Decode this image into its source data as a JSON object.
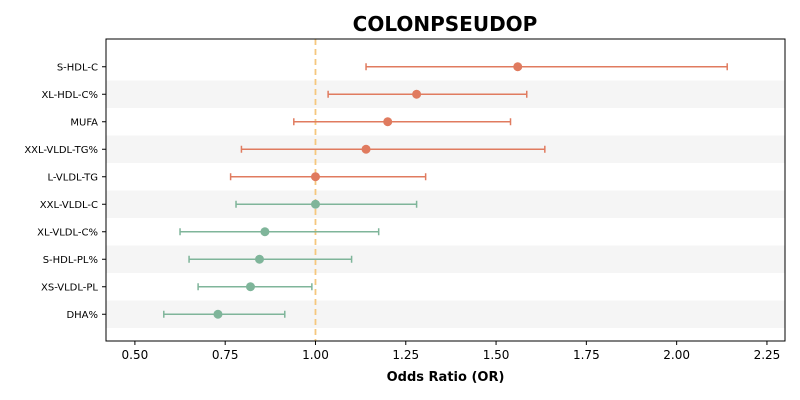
{
  "chart_data": {
    "type": "forest",
    "title": "COLONPSEUDOP",
    "xlabel": "Odds Ratio (OR)",
    "ylabel": "",
    "xlim": [
      0.42,
      2.3
    ],
    "xticks": [
      "0.50",
      "0.75",
      "1.00",
      "1.25",
      "1.50",
      "1.75",
      "2.00",
      "2.25"
    ],
    "reference_line": 1.0,
    "grid": false,
    "colors": {
      "risk": "#e07b5f",
      "protective": "#7fb59a",
      "reference": "#f5c77e",
      "stripe": "#f5f5f5"
    },
    "rows": [
      {
        "label": "S-HDL-C",
        "or": 1.56,
        "ci_low": 1.14,
        "ci_high": 2.14,
        "group": "risk"
      },
      {
        "label": "XL-HDL-C%",
        "or": 1.28,
        "ci_low": 1.035,
        "ci_high": 1.585,
        "group": "risk"
      },
      {
        "label": "MUFA",
        "or": 1.2,
        "ci_low": 0.94,
        "ci_high": 1.54,
        "group": "risk"
      },
      {
        "label": "XXL-VLDL-TG%",
        "or": 1.14,
        "ci_low": 0.795,
        "ci_high": 1.635,
        "group": "risk"
      },
      {
        "label": "L-VLDL-TG",
        "or": 1.0,
        "ci_low": 0.765,
        "ci_high": 1.305,
        "group": "risk"
      },
      {
        "label": "XXL-VLDL-C",
        "or": 1.0,
        "ci_low": 0.78,
        "ci_high": 1.28,
        "group": "protective"
      },
      {
        "label": "XL-VLDL-C%",
        "or": 0.86,
        "ci_low": 0.625,
        "ci_high": 1.175,
        "group": "protective"
      },
      {
        "label": "S-HDL-PL%",
        "or": 0.845,
        "ci_low": 0.65,
        "ci_high": 1.1,
        "group": "protective"
      },
      {
        "label": "XS-VLDL-PL",
        "or": 0.82,
        "ci_low": 0.675,
        "ci_high": 0.99,
        "group": "protective"
      },
      {
        "label": "DHA%",
        "or": 0.73,
        "ci_low": 0.58,
        "ci_high": 0.915,
        "group": "protective"
      }
    ]
  }
}
